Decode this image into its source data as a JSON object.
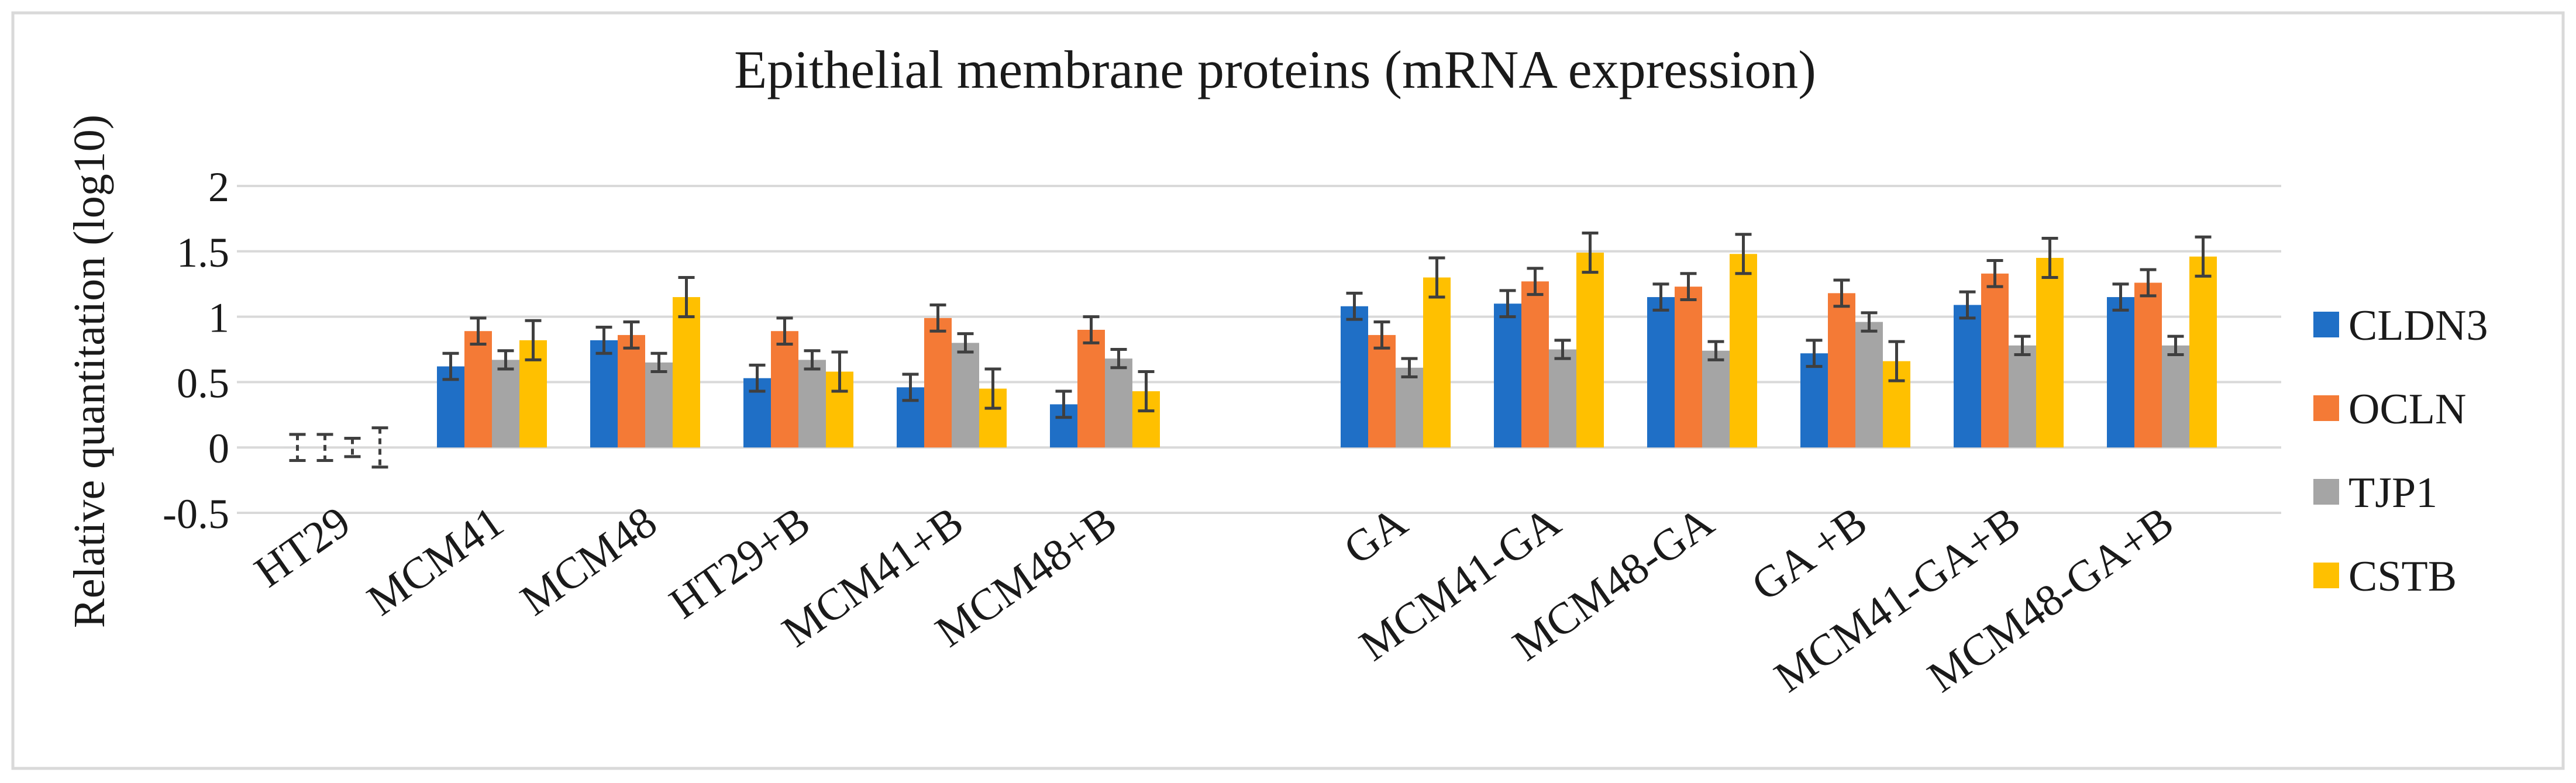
{
  "chart_data": {
    "type": "bar",
    "title": "Epithelial membrane proteins (mRNA expression)",
    "xlabel": "",
    "ylabel": "Relative quantitation (log10)",
    "ylim": [
      -0.5,
      2
    ],
    "yticks": [
      -0.5,
      0,
      0.5,
      1,
      1.5,
      2
    ],
    "ytick_labels": [
      "-0.5",
      "0",
      "0.5",
      "1",
      "1.5",
      "2"
    ],
    "grid": true,
    "legend_position": "right",
    "categories": [
      "HT29",
      "MCM41",
      "MCM48",
      "HT29+B",
      "MCM41+B",
      "MCM48+B",
      "GA",
      "MCM41-GA",
      "MCM48-GA",
      "GA +B",
      "MCM41-GA+B",
      "MCM48-GA+B"
    ],
    "category_groups": [
      [
        0,
        1,
        2,
        3,
        4,
        5
      ],
      [
        6,
        7,
        8,
        9,
        10,
        11
      ]
    ],
    "series": [
      {
        "name": "CLDN3",
        "color": "#1f6fc6",
        "values": [
          0,
          0.62,
          0.82,
          0.53,
          0.46,
          0.33,
          1.08,
          1.1,
          1.15,
          0.72,
          1.09,
          1.15
        ],
        "errors": [
          0.1,
          0.1,
          0.1,
          0.1,
          0.1,
          0.1,
          0.1,
          0.1,
          0.1,
          0.1,
          0.1,
          0.1
        ]
      },
      {
        "name": "OCLN",
        "color": "#f47a36",
        "values": [
          0,
          0.89,
          0.86,
          0.89,
          0.99,
          0.9,
          0.86,
          1.27,
          1.23,
          1.18,
          1.33,
          1.26
        ],
        "errors": [
          0.1,
          0.1,
          0.1,
          0.1,
          0.1,
          0.1,
          0.1,
          0.1,
          0.1,
          0.1,
          0.1,
          0.1
        ]
      },
      {
        "name": "TJP1",
        "color": "#a5a5a5",
        "values": [
          0,
          0.67,
          0.65,
          0.67,
          0.8,
          0.68,
          0.61,
          0.75,
          0.74,
          0.96,
          0.78,
          0.78
        ],
        "errors": [
          0.07,
          0.07,
          0.07,
          0.07,
          0.07,
          0.07,
          0.07,
          0.07,
          0.07,
          0.07,
          0.07,
          0.07
        ]
      },
      {
        "name": "CSTB",
        "color": "#ffc000",
        "values": [
          0,
          0.82,
          1.15,
          0.58,
          0.45,
          0.43,
          1.3,
          1.49,
          1.48,
          0.66,
          1.45,
          1.46
        ],
        "errors": [
          0.15,
          0.15,
          0.15,
          0.15,
          0.15,
          0.15,
          0.15,
          0.15,
          0.15,
          0.15,
          0.15,
          0.15
        ]
      }
    ]
  }
}
